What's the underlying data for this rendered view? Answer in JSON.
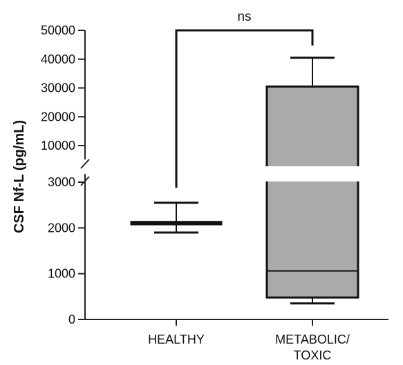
{
  "chart_data": {
    "type": "box",
    "ylabel": "CSF Nf-L (pg/mL)",
    "y_axis_break": {
      "lower_segment": {
        "range": [
          0,
          3000
        ],
        "ticks": [
          0,
          1000,
          2000,
          3000
        ],
        "tick_labels": [
          "0",
          "1000",
          "2000",
          "3000"
        ]
      },
      "upper_segment": {
        "range": [
          10000,
          50000
        ],
        "ticks": [
          10000,
          20000,
          30000,
          40000,
          50000
        ],
        "tick_labels": [
          "10000",
          "20000",
          "30000",
          "40000",
          "50000"
        ]
      }
    },
    "categories": [
      "HEALTHY",
      "METABOLIC/\nTOXIC"
    ],
    "category_lines": [
      [
        "HEALTHY"
      ],
      [
        "METABOLIC/",
        "TOXIC"
      ]
    ],
    "boxes": [
      {
        "name": "HEALTHY",
        "whisker_low": 1900,
        "q1": 2080,
        "median": 2100,
        "q3": 2130,
        "whisker_high": 2550,
        "fill": "#ffffff"
      },
      {
        "name": "METABOLIC/TOXIC",
        "whisker_low": 350,
        "q1": 480,
        "median": 1060,
        "q3": 30500,
        "whisker_high": 40500,
        "fill": "#aaaaaa"
      }
    ],
    "significance": {
      "label": "ns",
      "between": [
        "HEALTHY",
        "METABOLIC/TOXIC"
      ]
    }
  }
}
